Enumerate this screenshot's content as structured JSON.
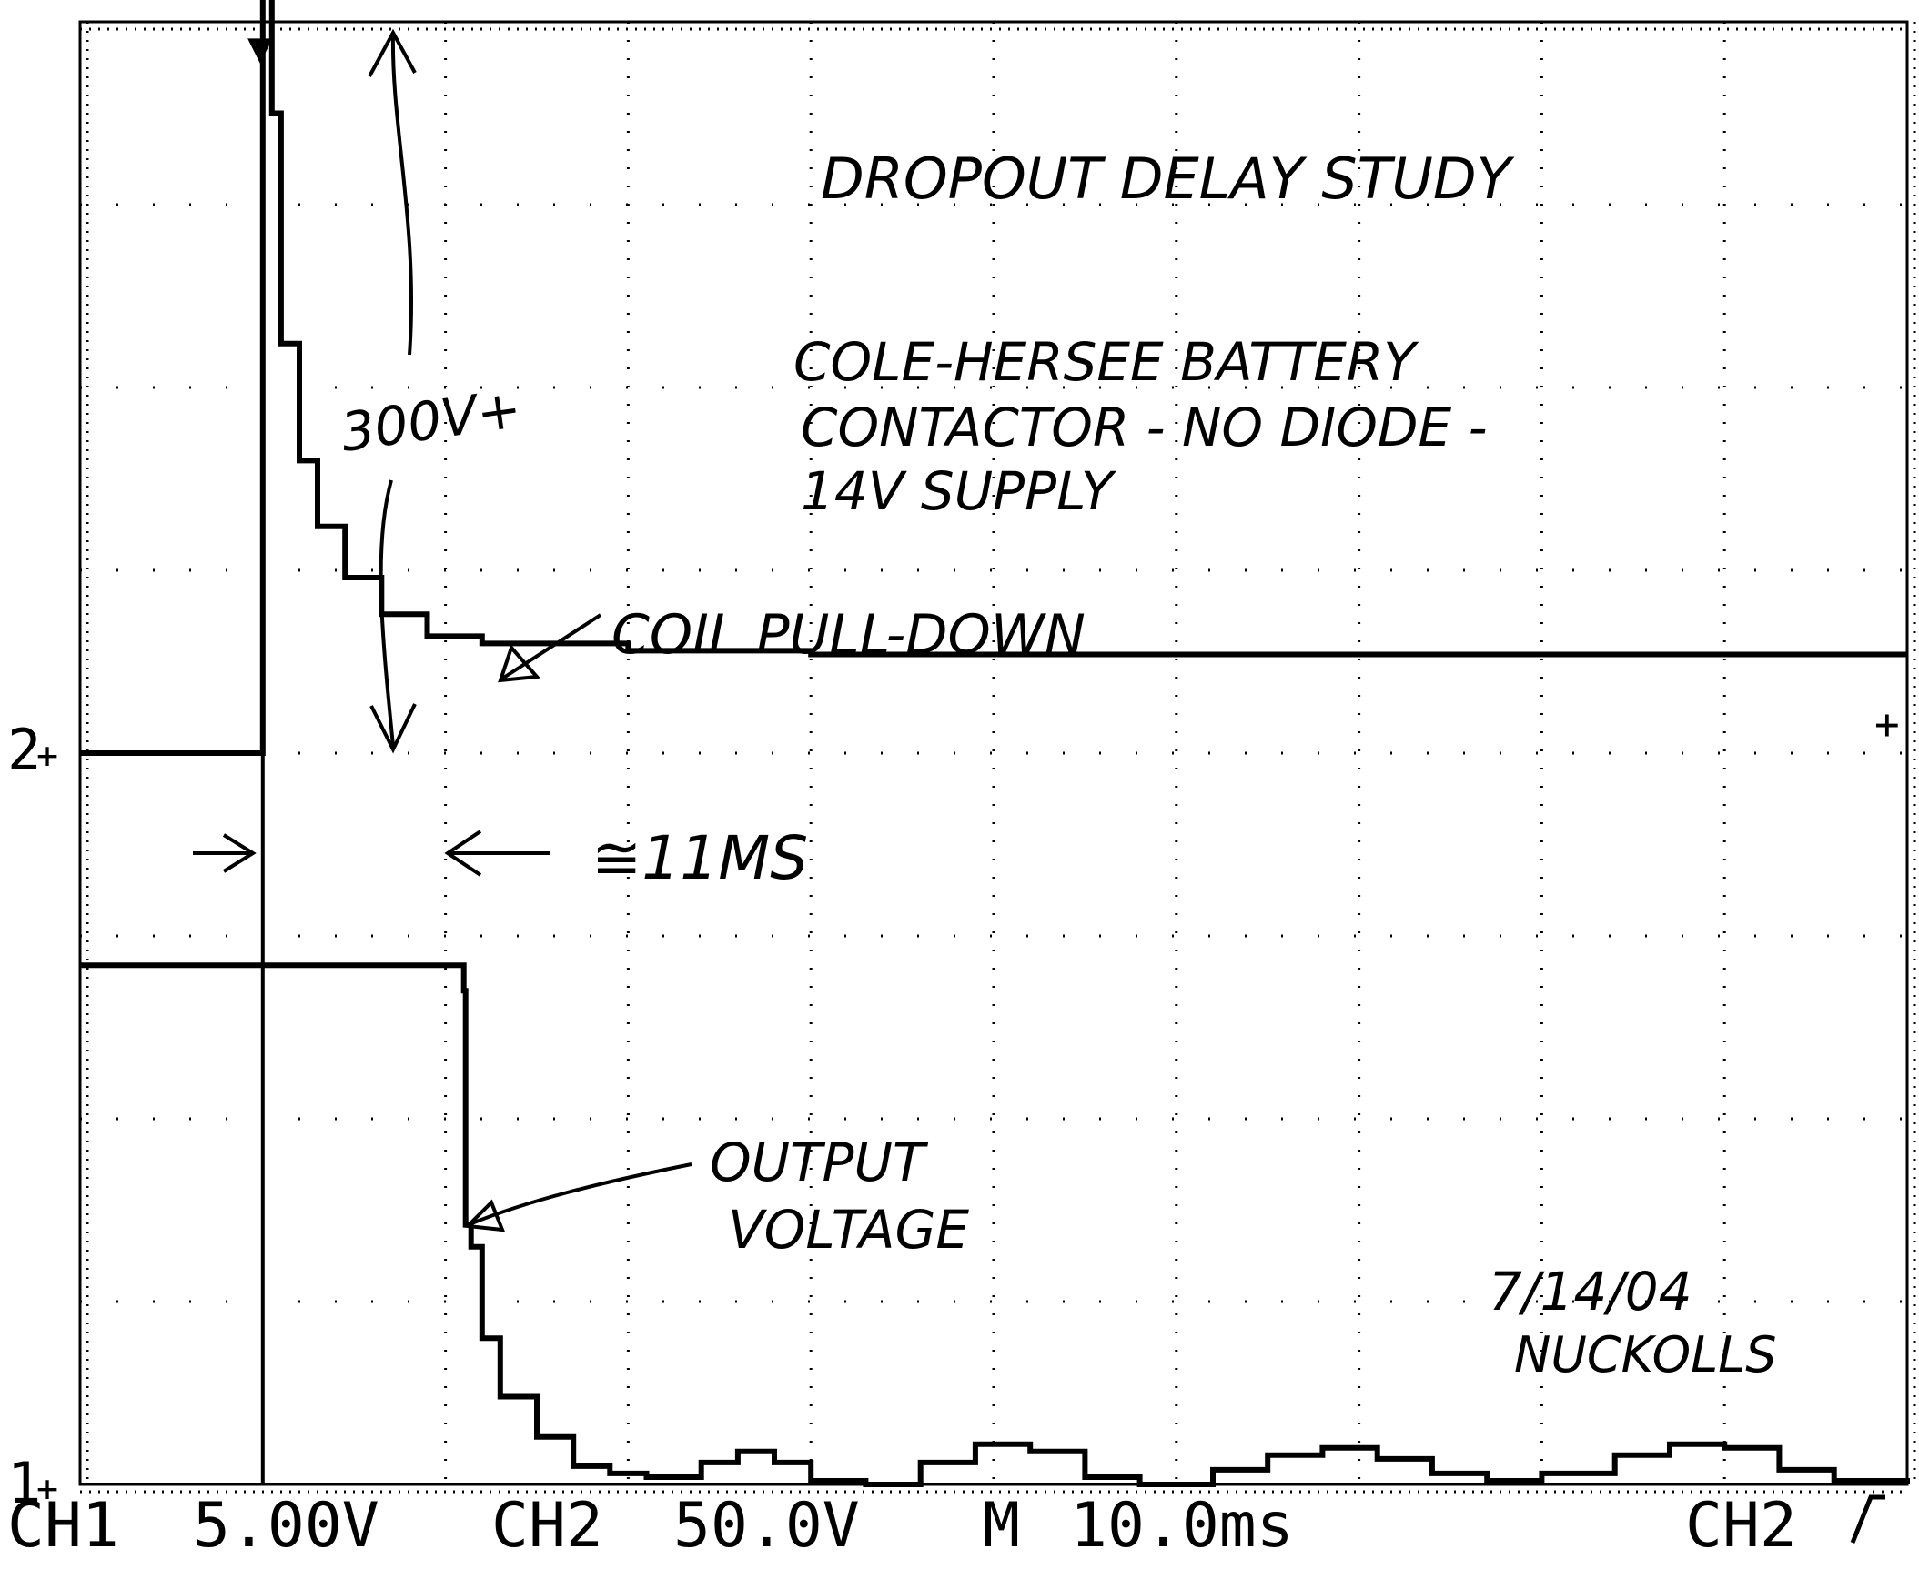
{
  "annotations": {
    "title": "DROPOUT DELAY STUDY",
    "description_lines": [
      "COLE-HERSEE BATTERY",
      "CONTACTOR - NO DIODE -",
      "14V SUPPLY"
    ],
    "spike_label": "300V+",
    "coil_label": "COIL PULL-DOWN",
    "delay_label": "≅11MS",
    "output_label_lines": [
      "OUTPUT",
      "VOLTAGE"
    ],
    "date": "7/14/04",
    "author": "NUCKOLLS"
  },
  "readout": {
    "ch1": "CH1",
    "ch1_scale": "5.00V",
    "ch2": "CH2",
    "ch2_scale": "50.0V",
    "timebase_label": "M",
    "timebase": "10.0ms",
    "trigger_source": "CH2"
  },
  "markers": {
    "ch1": "1",
    "ch2": "2"
  },
  "chart_data": {
    "type": "line",
    "grid": true,
    "divisions": {
      "x": 10,
      "y": 8
    },
    "x_unit": "ms",
    "x_per_div": 10,
    "xlim": [
      0,
      100
    ],
    "series": [
      {
        "channel": "CH2",
        "volts_per_div": 50,
        "ground_div": 4.0,
        "points": [
          [
            0,
            0
          ],
          [
            9.9,
            0
          ],
          [
            10,
            250
          ],
          [
            10.1,
            350
          ],
          [
            10.3,
            300
          ],
          [
            10.5,
            175
          ],
          [
            11.0,
            112
          ],
          [
            12.0,
            80
          ],
          [
            13.0,
            62
          ],
          [
            14.5,
            48
          ],
          [
            16.5,
            38
          ],
          [
            19,
            32
          ],
          [
            22,
            30
          ],
          [
            30,
            28
          ],
          [
            40,
            27
          ],
          [
            60,
            27
          ],
          [
            80,
            27
          ],
          [
            100,
            27
          ]
        ]
      },
      {
        "channel": "CH1",
        "volts_per_div": 5,
        "ground_div": 0.0,
        "points": [
          [
            0,
            14.2
          ],
          [
            20.9,
            14.2
          ],
          [
            21.0,
            13.5
          ],
          [
            21.1,
            7.1
          ],
          [
            21.4,
            6.5
          ],
          [
            22,
            4.0
          ],
          [
            23,
            2.4
          ],
          [
            25,
            1.3
          ],
          [
            27,
            0.5
          ],
          [
            29,
            0.3
          ],
          [
            31,
            0.2
          ],
          [
            34,
            0.6
          ],
          [
            36,
            0.9
          ],
          [
            38,
            0.6
          ],
          [
            40,
            0.1
          ],
          [
            43,
            0.0
          ],
          [
            46,
            0.6
          ],
          [
            49,
            1.1
          ],
          [
            52,
            0.9
          ],
          [
            55,
            0.2
          ],
          [
            58,
            0.0
          ],
          [
            62,
            0.4
          ],
          [
            65,
            0.8
          ],
          [
            68,
            1.0
          ],
          [
            71,
            0.7
          ],
          [
            74,
            0.3
          ],
          [
            77,
            0.1
          ],
          [
            80,
            0.3
          ],
          [
            84,
            0.8
          ],
          [
            87,
            1.1
          ],
          [
            90,
            1.0
          ],
          [
            93,
            0.4
          ],
          [
            96,
            0.1
          ],
          [
            100,
            0.0
          ]
        ]
      }
    ],
    "trigger_line_ms": 10
  }
}
